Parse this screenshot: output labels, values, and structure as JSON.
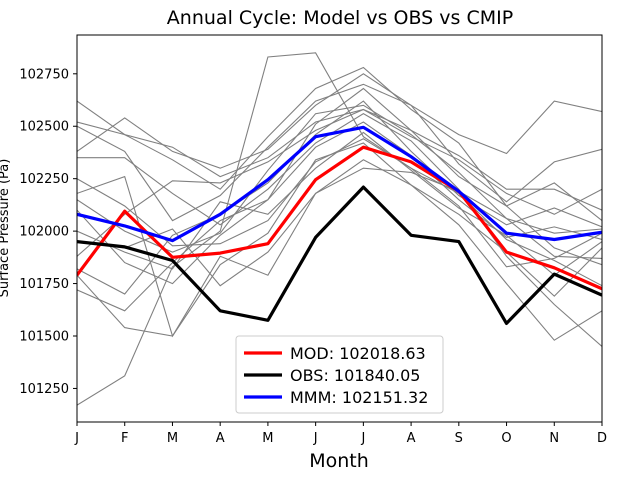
{
  "chart_data": {
    "type": "line",
    "title": "Annual Cycle: Model vs OBS vs CMIP",
    "xlabel": "Month",
    "ylabel": "Surface Pressure (Pa)",
    "categories": [
      "J",
      "F",
      "M",
      "A",
      "M",
      "J",
      "J",
      "A",
      "S",
      "O",
      "N",
      "D"
    ],
    "ylim": [
      101090,
      102935
    ],
    "yticks": [
      101250,
      101500,
      101750,
      102000,
      102250,
      102500,
      102750
    ],
    "legend_position": "lower center",
    "series": [
      {
        "name": "MOD",
        "legend": "MOD: 102018.63",
        "color": "#ff0000",
        "values": [
          101790,
          102095,
          101875,
          101895,
          101940,
          102245,
          102400,
          102330,
          102190,
          101900,
          101825,
          101725
        ]
      },
      {
        "name": "OBS",
        "legend": "OBS: 101840.05",
        "color": "#000000",
        "values": [
          101950,
          101925,
          101860,
          101620,
          101575,
          101970,
          102210,
          101980,
          101950,
          101560,
          101795,
          101695
        ]
      },
      {
        "name": "MMM",
        "legend": "MMM: 102151.32",
        "color": "#0000ff",
        "values": [
          102080,
          102025,
          101955,
          102080,
          102245,
          102450,
          102495,
          102355,
          102190,
          101990,
          101960,
          101995
        ]
      }
    ],
    "cmip_color": "#808080",
    "cmip_models": [
      [
        102620,
        102460,
        102340,
        102200,
        102450,
        102680,
        102780,
        102580,
        102420,
        102120,
        102230,
        102050
      ],
      [
        102380,
        102540,
        102380,
        102300,
        102390,
        102600,
        102750,
        102600,
        102460,
        102370,
        102620,
        102570
      ],
      [
        101170,
        101310,
        101830,
        102000,
        102830,
        102850,
        102450,
        102300,
        102180,
        101960,
        101860,
        101740
      ],
      [
        102180,
        102260,
        101500,
        101880,
        101790,
        102180,
        102300,
        102280,
        102190,
        102060,
        101990,
        102010
      ],
      [
        102500,
        102380,
        102050,
        102170,
        102400,
        102620,
        102700,
        102600,
        102320,
        102140,
        102330,
        102390
      ],
      [
        102100,
        101850,
        101750,
        101980,
        102150,
        102510,
        102680,
        102480,
        102260,
        102120,
        101920,
        101840
      ],
      [
        102350,
        102350,
        102180,
        102030,
        102200,
        102420,
        102560,
        102430,
        102200,
        101880,
        101650,
        101450
      ],
      [
        102520,
        102460,
        102400,
        102260,
        102350,
        102520,
        102580,
        102450,
        102340,
        102180,
        102080,
        102200
      ],
      [
        101880,
        102080,
        102240,
        102230,
        102330,
        102480,
        102580,
        102480,
        102360,
        102200,
        102200,
        102100
      ],
      [
        102000,
        101900,
        101820,
        102140,
        102080,
        102300,
        102470,
        102290,
        102110,
        101980,
        101790,
        101950
      ],
      [
        101950,
        101920,
        102010,
        101740,
        101900,
        102180,
        102340,
        102220,
        102080,
        101900,
        101690,
        101920
      ],
      [
        101820,
        101700,
        101980,
        102080,
        102230,
        102460,
        102620,
        102380,
        102170,
        102030,
        102110,
        102020
      ],
      [
        101790,
        101540,
        101500,
        101840,
        101990,
        102340,
        102420,
        102220,
        102030,
        101750,
        101480,
        101620
      ],
      [
        102150,
        102000,
        101900,
        101990,
        102290,
        102560,
        102600,
        102460,
        102280,
        102060,
        101880,
        101870
      ],
      [
        102250,
        102120,
        101930,
        101940,
        102050,
        102330,
        102440,
        102300,
        102120,
        101830,
        101870,
        101990
      ],
      [
        101720,
        101620,
        101850,
        102050,
        102150,
        102400,
        102520,
        102360,
        102150,
        101970,
        102020,
        101960
      ]
    ]
  }
}
